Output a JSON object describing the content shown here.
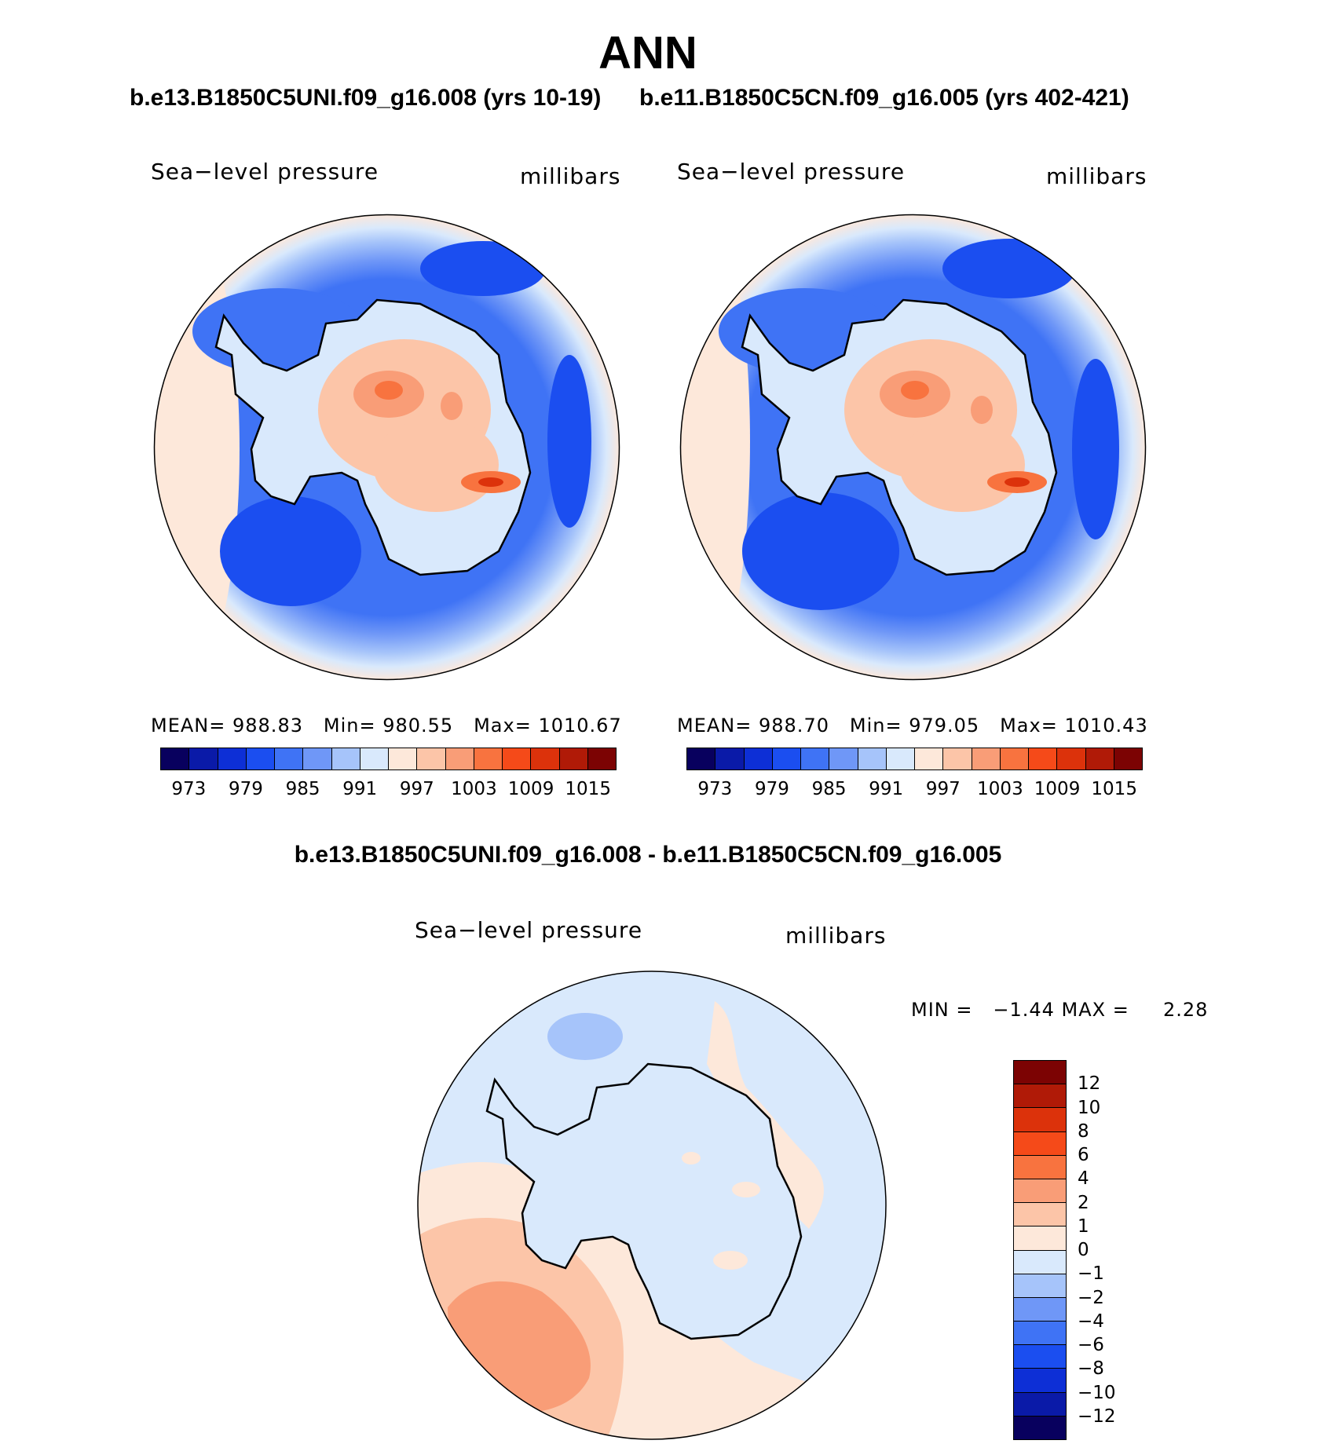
{
  "title": "ANN",
  "case1_title": "b.e13.B1850C5UNI.f09_g16.008 (yrs 10-19)",
  "case2_title": "b.e11.B1850C5CN.f09_g16.005 (yrs 402-421)",
  "diff_title": "b.e13.B1850C5UNI.f09_g16.008 - b.e11.B1850C5CN.f09_g16.005",
  "panels": [
    {
      "variable": "Sea−level pressure",
      "units": "millibars",
      "stats": {
        "mean_label": "MEAN=",
        "mean": "988.83",
        "min_label": "Min=",
        "min": "980.55",
        "max_label": "Max=",
        "max": "1010.67"
      }
    },
    {
      "variable": "Sea−level pressure",
      "units": "millibars",
      "stats": {
        "mean_label": "MEAN=",
        "mean": "988.70",
        "min_label": "Min=",
        "min": "979.05",
        "max_label": "Max=",
        "max": "1010.43"
      }
    }
  ],
  "diff_panel": {
    "variable": "Sea−level pressure",
    "units": "millibars",
    "stats_text": "MIN =   −1.44 MAX =     2.28"
  },
  "colorbar_main": {
    "colors": [
      "#08005e",
      "#0a1aa8",
      "#0d2fd6",
      "#1b4ef0",
      "#3f73f5",
      "#6f97f7",
      "#a6c4fa",
      "#d9e9fc",
      "#fde8da",
      "#fcc5a8",
      "#f99d77",
      "#f8733f",
      "#f54a19",
      "#dc320b",
      "#b01a07",
      "#7c0303"
    ],
    "ticks": [
      "973",
      "979",
      "985",
      "991",
      "997",
      "1003",
      "1009",
      "1015"
    ]
  },
  "colorbar_diff": {
    "colors": [
      "#7c0303",
      "#b01a07",
      "#dc320b",
      "#f54a19",
      "#f8733f",
      "#f99d77",
      "#fcc5a8",
      "#fde8da",
      "#d9e9fc",
      "#a6c4fa",
      "#6f97f7",
      "#3f73f5",
      "#1b4ef0",
      "#0d2fd6",
      "#0a1aa8",
      "#08005e"
    ],
    "ticks": [
      "12",
      "10",
      "8",
      "6",
      "4",
      "2",
      "1",
      "0",
      "−1",
      "−2",
      "−4",
      "−6",
      "−8",
      "−10",
      "−12"
    ]
  }
}
